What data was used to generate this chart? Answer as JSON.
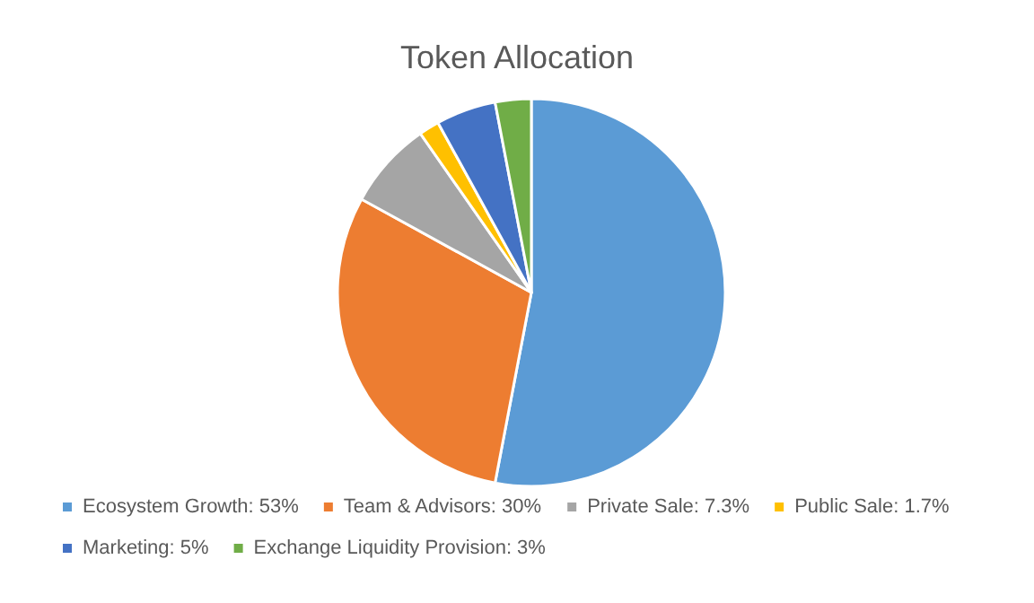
{
  "chart_data": {
    "type": "pie",
    "title": "Token Allocation",
    "categories": [
      "Ecosystem Growth: 53%",
      "Team & Advisors: 30%",
      "Private Sale: 7.3%",
      "Public Sale: 1.7%",
      "Marketing: 5%",
      "Exchange Liquidity Provision: 3%"
    ],
    "values": [
      53,
      30,
      7.3,
      1.7,
      5,
      3
    ],
    "colors": [
      "#5b9bd5",
      "#ed7d31",
      "#a5a5a5",
      "#ffc000",
      "#4472c4",
      "#70ad47"
    ],
    "legend": "bottom"
  }
}
